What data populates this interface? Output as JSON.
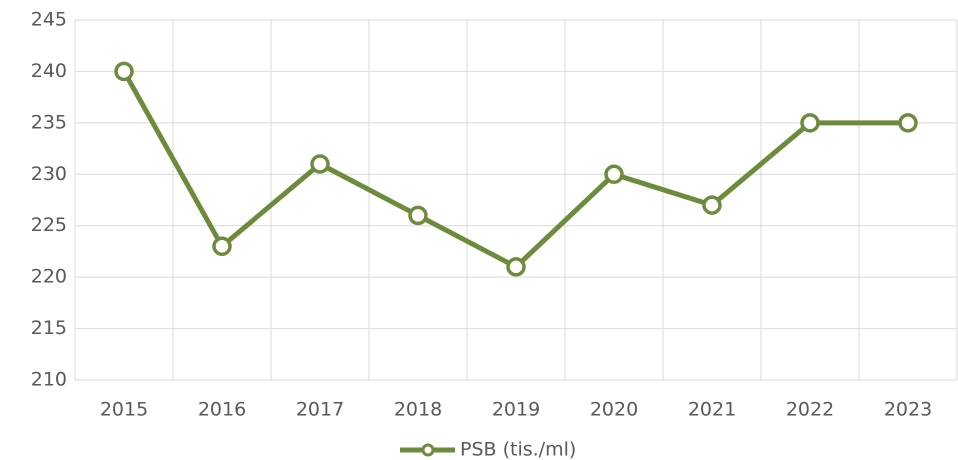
{
  "chart_data": {
    "type": "line",
    "categories": [
      "2015",
      "2016",
      "2017",
      "2018",
      "2019",
      "2020",
      "2021",
      "2022",
      "2023"
    ],
    "series": [
      {
        "name": "PSB (tis./ml)",
        "color": "#6e8b3d",
        "values": [
          240,
          223,
          231,
          226,
          221,
          230,
          227,
          235,
          235
        ]
      }
    ],
    "ylim": [
      210,
      245
    ],
    "yticks": [
      210,
      215,
      220,
      225,
      230,
      235,
      240,
      245
    ],
    "grid": true,
    "legend": "bottom"
  }
}
